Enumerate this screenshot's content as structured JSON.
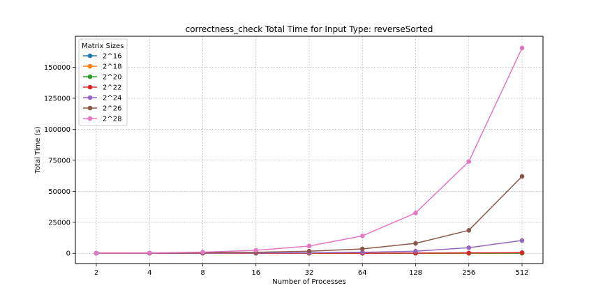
{
  "chart_data": {
    "type": "line",
    "title": "correctness_check Total Time for Input Type: reverseSorted",
    "xlabel": "Number of Processes",
    "ylabel": "Total Time (s)",
    "x": [
      "2",
      "4",
      "8",
      "16",
      "32",
      "64",
      "128",
      "256",
      "512"
    ],
    "ylim": [
      -8300,
      175000
    ],
    "yticks": [
      0,
      25000,
      50000,
      75000,
      100000,
      125000,
      150000
    ],
    "ytick_labels": [
      "0",
      "25000",
      "50000",
      "75000",
      "100000",
      "125000",
      "150000"
    ],
    "grid": true,
    "legend": {
      "title": "Matrix Sizes",
      "position": "top-left"
    },
    "series": [
      {
        "name": "2^16",
        "color": "#1f77b4",
        "values": [
          5,
          3,
          2,
          2,
          2,
          3,
          5,
          8,
          15
        ]
      },
      {
        "name": "2^18",
        "color": "#ff7f0e",
        "values": [
          10,
          8,
          6,
          5,
          6,
          8,
          12,
          20,
          40
        ]
      },
      {
        "name": "2^20",
        "color": "#2ca02c",
        "values": [
          20,
          15,
          12,
          12,
          15,
          20,
          30,
          50,
          90
        ]
      },
      {
        "name": "2^22",
        "color": "#d62728",
        "values": [
          40,
          30,
          25,
          25,
          35,
          60,
          120,
          250,
          500
        ]
      },
      {
        "name": "2^24",
        "color": "#9467bd",
        "values": [
          80,
          100,
          150,
          250,
          400,
          800,
          1700,
          4500,
          10300
        ]
      },
      {
        "name": "2^26",
        "color": "#8c564b",
        "values": [
          150,
          200,
          400,
          800,
          1700,
          3500,
          8000,
          18500,
          62000
        ]
      },
      {
        "name": "2^28",
        "color": "#e377c2",
        "values": [
          150,
          300,
          900,
          2400,
          5800,
          14000,
          32500,
          74000,
          165500
        ]
      }
    ]
  }
}
